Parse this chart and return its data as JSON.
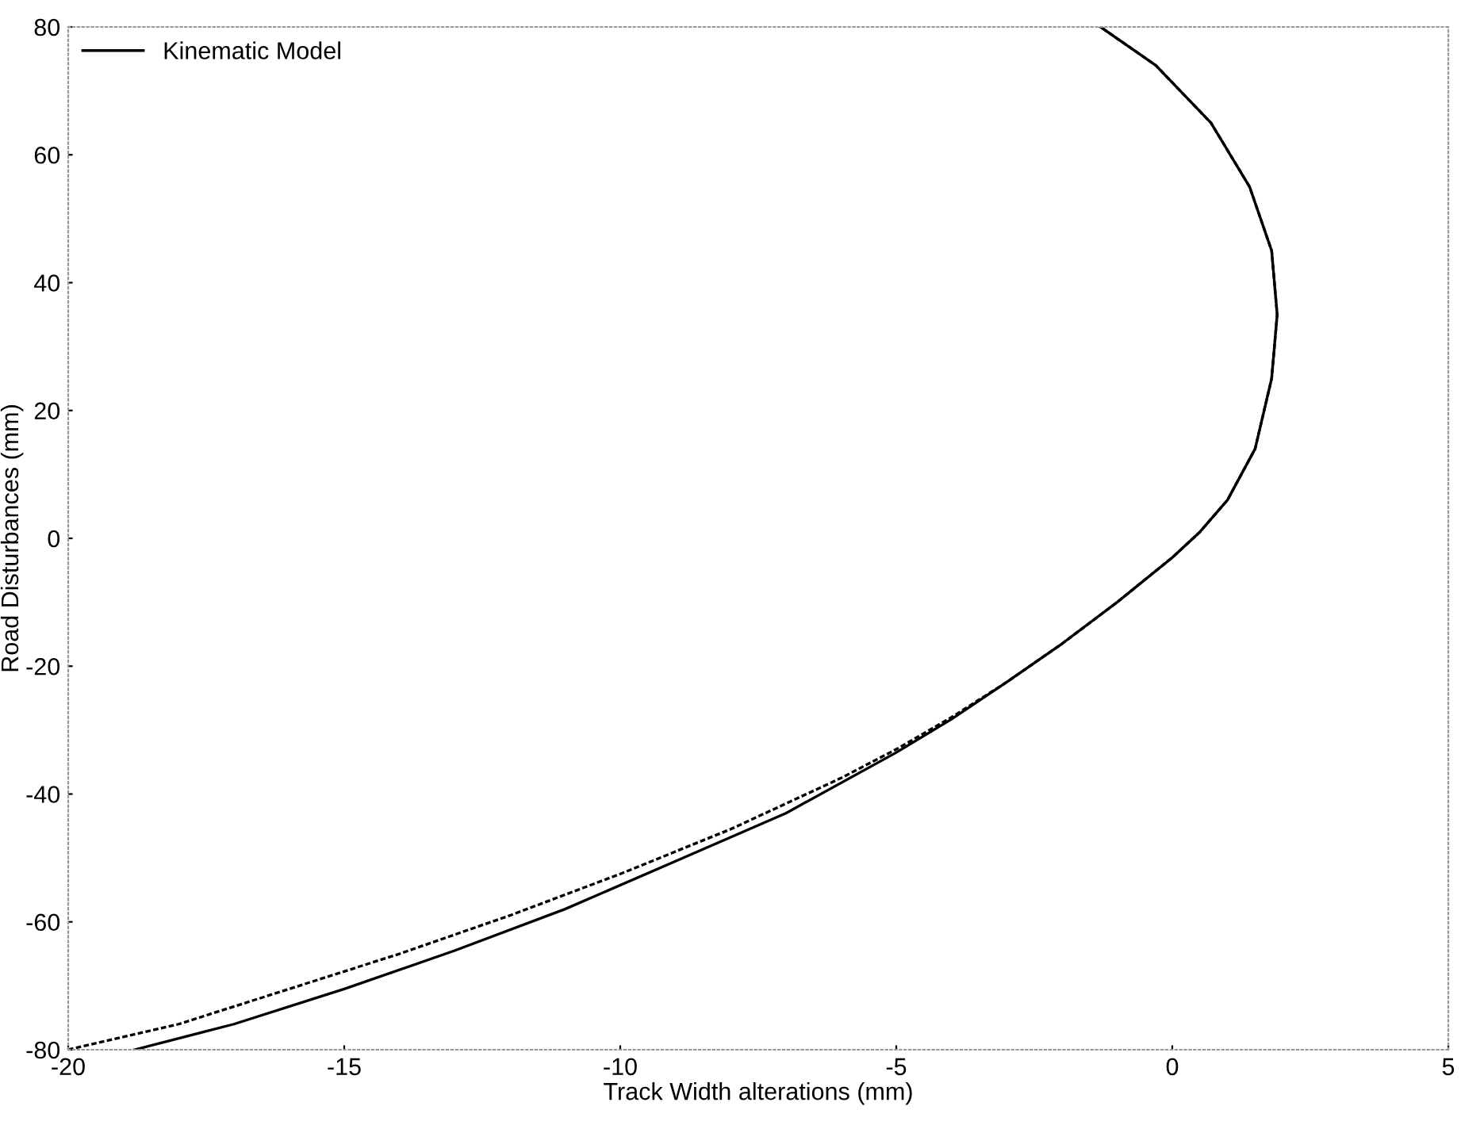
{
  "chart_data": {
    "type": "line",
    "xlabel": "Track Width alterations (mm)",
    "ylabel": "Road Disturbances (mm)",
    "xlim": [
      -20,
      5
    ],
    "ylim": [
      -80,
      80
    ],
    "xticks": [
      -20,
      -15,
      -10,
      -5,
      0,
      5
    ],
    "yticks": [
      -80,
      -60,
      -40,
      -20,
      0,
      20,
      40,
      60,
      80
    ],
    "grid": false,
    "legend": "top left",
    "marker": "none",
    "series": [
      {
        "color": "#000000",
        "line_style": "dashed",
        "x": [
          -20,
          -18,
          -16,
          -14,
          -12,
          -10,
          -8,
          -6,
          -5,
          -4,
          -3,
          -2,
          -1,
          0,
          0.5,
          1,
          1.5,
          1.8,
          1.9,
          1.8,
          1.4,
          0.7,
          -0.3,
          -1.3
        ],
        "values": [
          -80,
          -76,
          -70.5,
          -65,
          -59,
          -52.5,
          -45.5,
          -37.5,
          -33,
          -28,
          -22.5,
          -16.5,
          -10,
          -3,
          1,
          6,
          14,
          25,
          35,
          45,
          55,
          65,
          74,
          80
        ]
      },
      {
        "name": "Kinematic Model",
        "color": "#000000",
        "line_style": "solid",
        "x": [
          -18.8,
          -17,
          -15,
          -13,
          -11,
          -9,
          -7,
          -5,
          -4,
          -3,
          -2,
          -1,
          0,
          0.5,
          1,
          1.5,
          1.8,
          1.9,
          1.8,
          1.4,
          0.7,
          -0.3,
          -1.3
        ],
        "values": [
          -80,
          -76,
          -70.5,
          -64.5,
          -58,
          -50.5,
          -43,
          -33.5,
          -28.3,
          -22.5,
          -16.5,
          -10,
          -3,
          1,
          6,
          14,
          25,
          35,
          45,
          55,
          65,
          74,
          80
        ]
      }
    ]
  }
}
